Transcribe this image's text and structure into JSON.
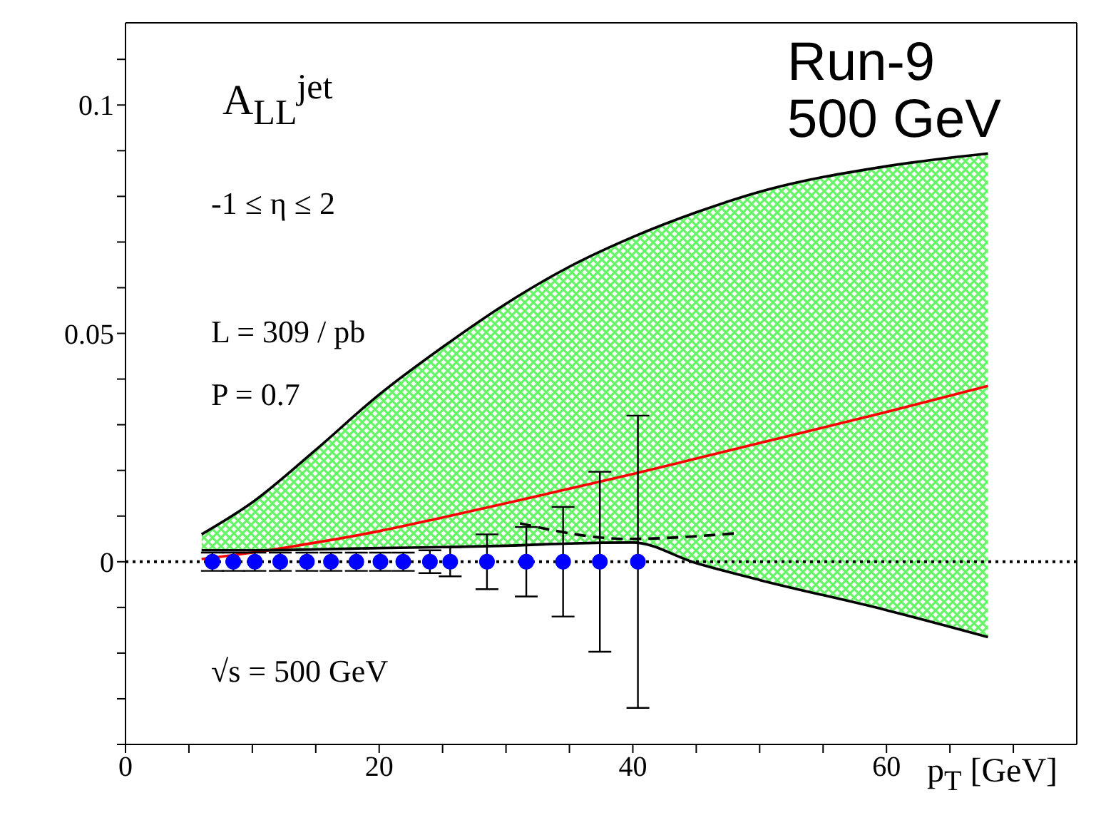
{
  "chart_data": {
    "type": "line",
    "xlabel": "p$_{T}$ [GeV]",
    "annotations": [
      "A$_{LL}$$^{jet}$",
      "-1 ≤ η ≤ 2",
      "L = 309 / pb",
      "P = 0.7",
      "√s = 500 GeV",
      "Run-9\n500 GeV"
    ],
    "xlim": [
      0,
      75
    ],
    "xticks": [
      0,
      {
        "value": 5,
        "label": null
      },
      {
        "value": 10,
        "label": null
      },
      {
        "value": 15,
        "label": null
      },
      20,
      {
        "value": 25,
        "label": null
      },
      {
        "value": 30,
        "label": null
      },
      {
        "value": 35,
        "label": null
      },
      40,
      {
        "value": 45,
        "label": null
      },
      {
        "value": 50,
        "label": null
      },
      {
        "value": 55,
        "label": null
      },
      60,
      {
        "value": 65,
        "label": null
      },
      {
        "value": 70,
        "label": null
      }
    ],
    "ylim": [
      -0.04,
      0.118
    ],
    "yticks": [
      {
        "value": -0.04,
        "label": null
      },
      {
        "value": -0.03,
        "label": null
      },
      {
        "value": -0.02,
        "label": null
      },
      {
        "value": -0.01,
        "label": null
      },
      0,
      {
        "value": 0.01,
        "label": null
      },
      {
        "value": 0.02,
        "label": null
      },
      {
        "value": 0.03,
        "label": null
      },
      {
        "value": 0.04,
        "label": null
      },
      0.05,
      {
        "value": 0.06,
        "label": null
      },
      {
        "value": 0.07,
        "label": null
      },
      {
        "value": 0.08,
        "label": null
      },
      {
        "value": 0.09,
        "label": null
      },
      0.1,
      {
        "value": 0.11,
        "label": null
      }
    ],
    "ref_lines": [
      {
        "axis": "y",
        "value": 0,
        "color": "#000000",
        "line_style": "dotted"
      }
    ],
    "series": [
      {
        "color": "#ff0000",
        "x": [
          6,
          10,
          15,
          20,
          25,
          30,
          35,
          40,
          45,
          50,
          60,
          68
        ],
        "values": [
          0.0006,
          0.002,
          0.0042,
          0.0067,
          0.0097,
          0.0128,
          0.016,
          0.0192,
          0.0226,
          0.026,
          0.0328,
          0.0385
        ],
        "lower": [
          0.0025,
          0.0025,
          0.0027,
          0.003,
          0.0032,
          0.0035,
          0.004,
          0.0042,
          -0.0003,
          -0.004,
          -0.0106,
          -0.0165
        ],
        "upper": [
          0.006,
          0.013,
          0.0245,
          0.0366,
          0.047,
          0.0565,
          0.0646,
          0.0711,
          0.0765,
          0.081,
          0.0866,
          0.0894
        ]
      },
      {
        "color": "#000000",
        "x": [
          6,
          10,
          15,
          20,
          25,
          30,
          35,
          40,
          45,
          50,
          60,
          68
        ],
        "values": [
          0.006,
          0.013,
          0.0245,
          0.0366,
          0.047,
          0.0565,
          0.0646,
          0.0711,
          0.0765,
          0.081,
          0.0866,
          0.0894
        ]
      },
      {
        "color": "#000000",
        "x": [
          6,
          10,
          15,
          20,
          25,
          30,
          35,
          40,
          45,
          50,
          60,
          68
        ],
        "values": [
          0.0025,
          0.0025,
          0.0027,
          0.003,
          0.0032,
          0.0035,
          0.004,
          0.0042,
          -0.0003,
          -0.004,
          -0.0106,
          -0.0165
        ]
      },
      {
        "color": "#000000",
        "line_style": "dashed",
        "x": [
          31.1,
          39.6,
          48
        ],
        "values": [
          0.0084,
          0.005,
          0.0062
        ]
      },
      {
        "type": "scatter",
        "color": "#0000ff",
        "marker": "circle",
        "x": [
          6.85,
          8.5,
          10.2,
          12.2,
          14.3,
          16.2,
          18.2,
          20.1,
          21.9,
          24.0,
          25.6,
          28.5,
          31.6,
          34.5,
          37.4,
          40.4
        ],
        "values": [
          0,
          0,
          0,
          0,
          0,
          0,
          0,
          0,
          0,
          0,
          0,
          0,
          0,
          0,
          0,
          0
        ],
        "errors": [
          0.002,
          0.002,
          0.002,
          0.002,
          0.002,
          0.002,
          0.002,
          0.002,
          0.002,
          0.0025,
          0.0032,
          0.006,
          0.0076,
          0.012,
          0.0197,
          0.032
        ]
      }
    ]
  }
}
